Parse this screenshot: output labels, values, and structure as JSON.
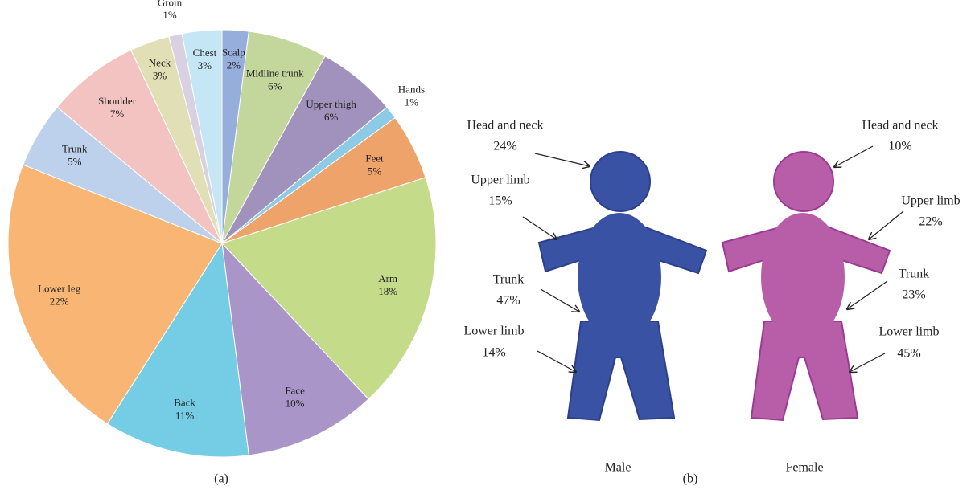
{
  "chart_data": {
    "type": "pie",
    "caption": "(a)",
    "categories": [
      "Scalp",
      "Midline trunk",
      "Upper thigh",
      "Hands",
      "Feet",
      "Arm",
      "Face",
      "Back",
      "Lower leg",
      "Trunk",
      "Shoulder",
      "Neck",
      "Groin",
      "Chest"
    ],
    "values": [
      2,
      6,
      6,
      1,
      5,
      18,
      10,
      11,
      22,
      5,
      7,
      3,
      1,
      3
    ],
    "value_labels": [
      "2%",
      "6%",
      "6%",
      "1%",
      "5%",
      "18%",
      "10%",
      "11%",
      "22%",
      "5%",
      "7%",
      "3%",
      "1%",
      "3%"
    ],
    "colors": [
      "#95aedc",
      "#c3d69b",
      "#a092bc",
      "#8ccae6",
      "#eea36a",
      "#c4db8a",
      "#a995c8",
      "#74cde4",
      "#f8b573",
      "#bdd0ec",
      "#f2c3c1",
      "#e0dfb6",
      "#d9d0e2",
      "#c5e6f4"
    ]
  },
  "figure_b": {
    "caption": "(b)",
    "figures": [
      {
        "name": "Male",
        "regions": [
          {
            "label": "Head and neck",
            "value": "24%"
          },
          {
            "label": "Upper limb",
            "value": "15%"
          },
          {
            "label": "Trunk",
            "value": "47%"
          },
          {
            "label": "Lower limb",
            "value": "14%"
          }
        ]
      },
      {
        "name": "Female",
        "regions": [
          {
            "label": "Head and neck",
            "value": "10%"
          },
          {
            "label": "Upper limb",
            "value": "22%"
          },
          {
            "label": "Trunk",
            "value": "23%"
          },
          {
            "label": "Lower limb",
            "value": "45%"
          }
        ]
      }
    ]
  }
}
